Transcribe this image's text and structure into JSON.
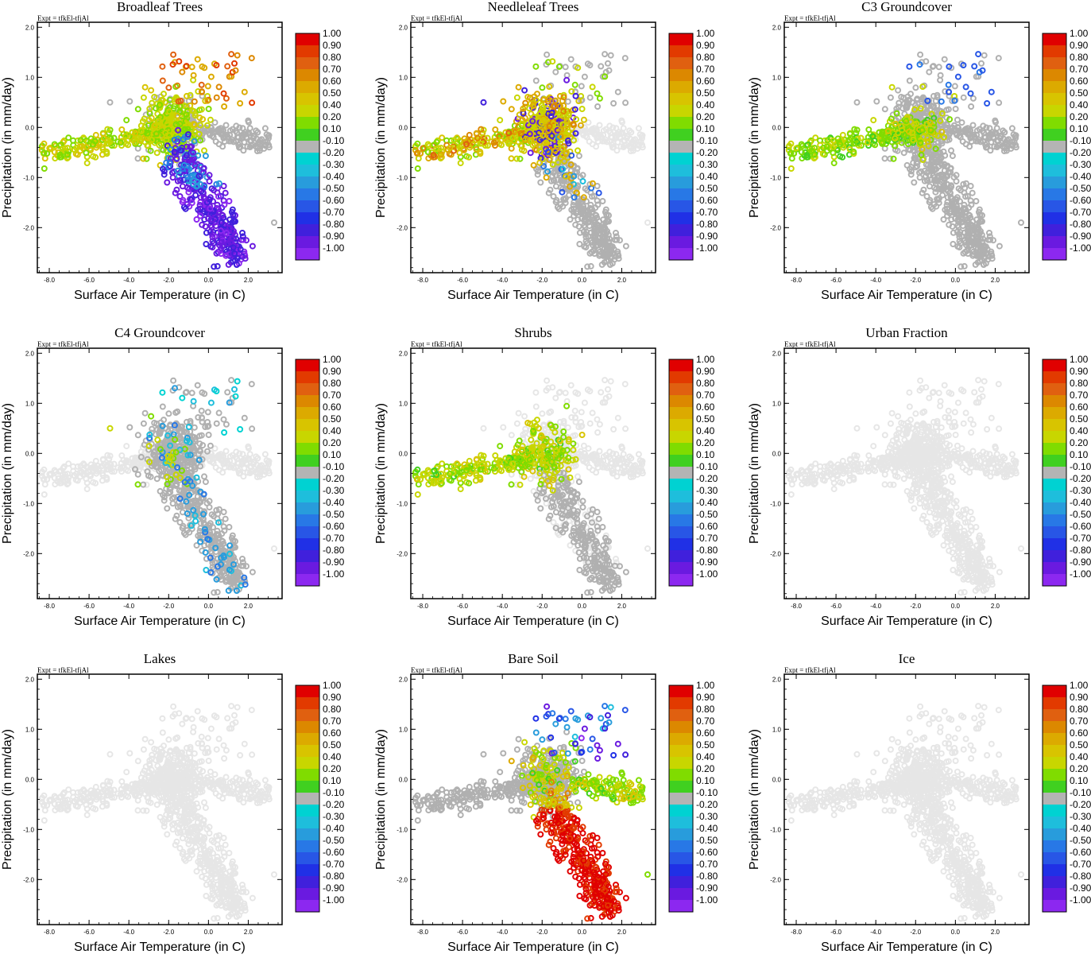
{
  "figure": {
    "experiment_label": "Expt = tfkEl-tfjAl",
    "xlabel": "Surface Air Temperature (in C)",
    "ylabel": "Precipitation (in mm/day)",
    "x_ticks": [
      "-8.0",
      "-6.0",
      "-4.0",
      "-2.0",
      "0.0",
      "2.0"
    ],
    "y_ticks": [
      "2.0",
      "1.0",
      "0.0",
      "-1.0",
      "-2.0"
    ],
    "colorbar_labels": [
      "1.00",
      "0.90",
      "0.80",
      "0.70",
      "0.60",
      "0.50",
      "0.40",
      "0.20",
      "0.10",
      "-0.10",
      "-0.20",
      "-0.30",
      "-0.40",
      "-0.50",
      "-0.60",
      "-0.70",
      "-0.80",
      "-0.90",
      "-1.00"
    ],
    "colorbar_colors": [
      "#e00000",
      "#e23a00",
      "#e06010",
      "#dc8800",
      "#dcaa00",
      "#d8c400",
      "#c8d600",
      "#80dc00",
      "#40d020",
      "#b4b4b4",
      "#00d2d2",
      "#1ebedc",
      "#289cdc",
      "#2878e6",
      "#2856e6",
      "#2030e6",
      "#4020dc",
      "#6a1ae0",
      "#8c28f0"
    ],
    "background_point_colors": {
      "light": "#e6e6e6",
      "dark": "#b0b0b0"
    }
  },
  "chart_data": [
    {
      "type": "scatter",
      "title": "Broadleaf Trees",
      "xlabel": "Surface Air Temperature (in C)",
      "ylabel": "Precipitation (in mm/day)",
      "xlim": [
        -8.6,
        3.7
      ],
      "ylim": [
        -2.9,
        2.1
      ],
      "pattern": "broadleaf",
      "description_of_color": "correlation, -1 to 1"
    },
    {
      "type": "scatter",
      "title": "Needleleaf Trees",
      "xlabel": "Surface Air Temperature (in C)",
      "ylabel": "Precipitation (in mm/day)",
      "xlim": [
        -8.6,
        3.7
      ],
      "ylim": [
        -2.9,
        2.1
      ],
      "pattern": "needleleaf"
    },
    {
      "type": "scatter",
      "title": "C3 Groundcover",
      "xlabel": "Surface Air Temperature (in C)",
      "ylabel": "Precipitation (in mm/day)",
      "xlim": [
        -8.6,
        3.7
      ],
      "ylim": [
        -2.9,
        2.1
      ],
      "pattern": "c3"
    },
    {
      "type": "scatter",
      "title": "C4 Groundcover",
      "xlabel": "Surface Air Temperature (in C)",
      "ylabel": "Precipitation (in mm/day)",
      "xlim": [
        -8.6,
        3.7
      ],
      "ylim": [
        -2.9,
        2.1
      ],
      "pattern": "c4"
    },
    {
      "type": "scatter",
      "title": "Shrubs",
      "xlabel": "Surface Air Temperature (in C)",
      "ylabel": "Precipitation (in mm/day)",
      "xlim": [
        -8.6,
        3.7
      ],
      "ylim": [
        -2.9,
        2.1
      ],
      "pattern": "shrubs"
    },
    {
      "type": "scatter",
      "title": "Urban Fraction",
      "xlabel": "Surface Air Temperature (in C)",
      "ylabel": "Precipitation (in mm/day)",
      "xlim": [
        -8.6,
        3.7
      ],
      "ylim": [
        -2.9,
        2.1
      ],
      "pattern": "none"
    },
    {
      "type": "scatter",
      "title": "Lakes",
      "xlabel": "Surface Air Temperature (in C)",
      "ylabel": "Precipitation (in mm/day)",
      "xlim": [
        -8.6,
        3.7
      ],
      "ylim": [
        -2.9,
        2.1
      ],
      "pattern": "none"
    },
    {
      "type": "scatter",
      "title": "Bare Soil",
      "xlabel": "Surface Air Temperature (in C)",
      "ylabel": "Precipitation (in mm/day)",
      "xlim": [
        -8.6,
        3.7
      ],
      "ylim": [
        -2.9,
        2.1
      ],
      "pattern": "baresoil"
    },
    {
      "type": "scatter",
      "title": "Ice",
      "xlabel": "Surface Air Temperature (in C)",
      "ylabel": "Precipitation (in mm/day)",
      "xlim": [
        -8.6,
        3.7
      ],
      "ylim": [
        -2.9,
        2.1
      ],
      "pattern": "none"
    }
  ]
}
